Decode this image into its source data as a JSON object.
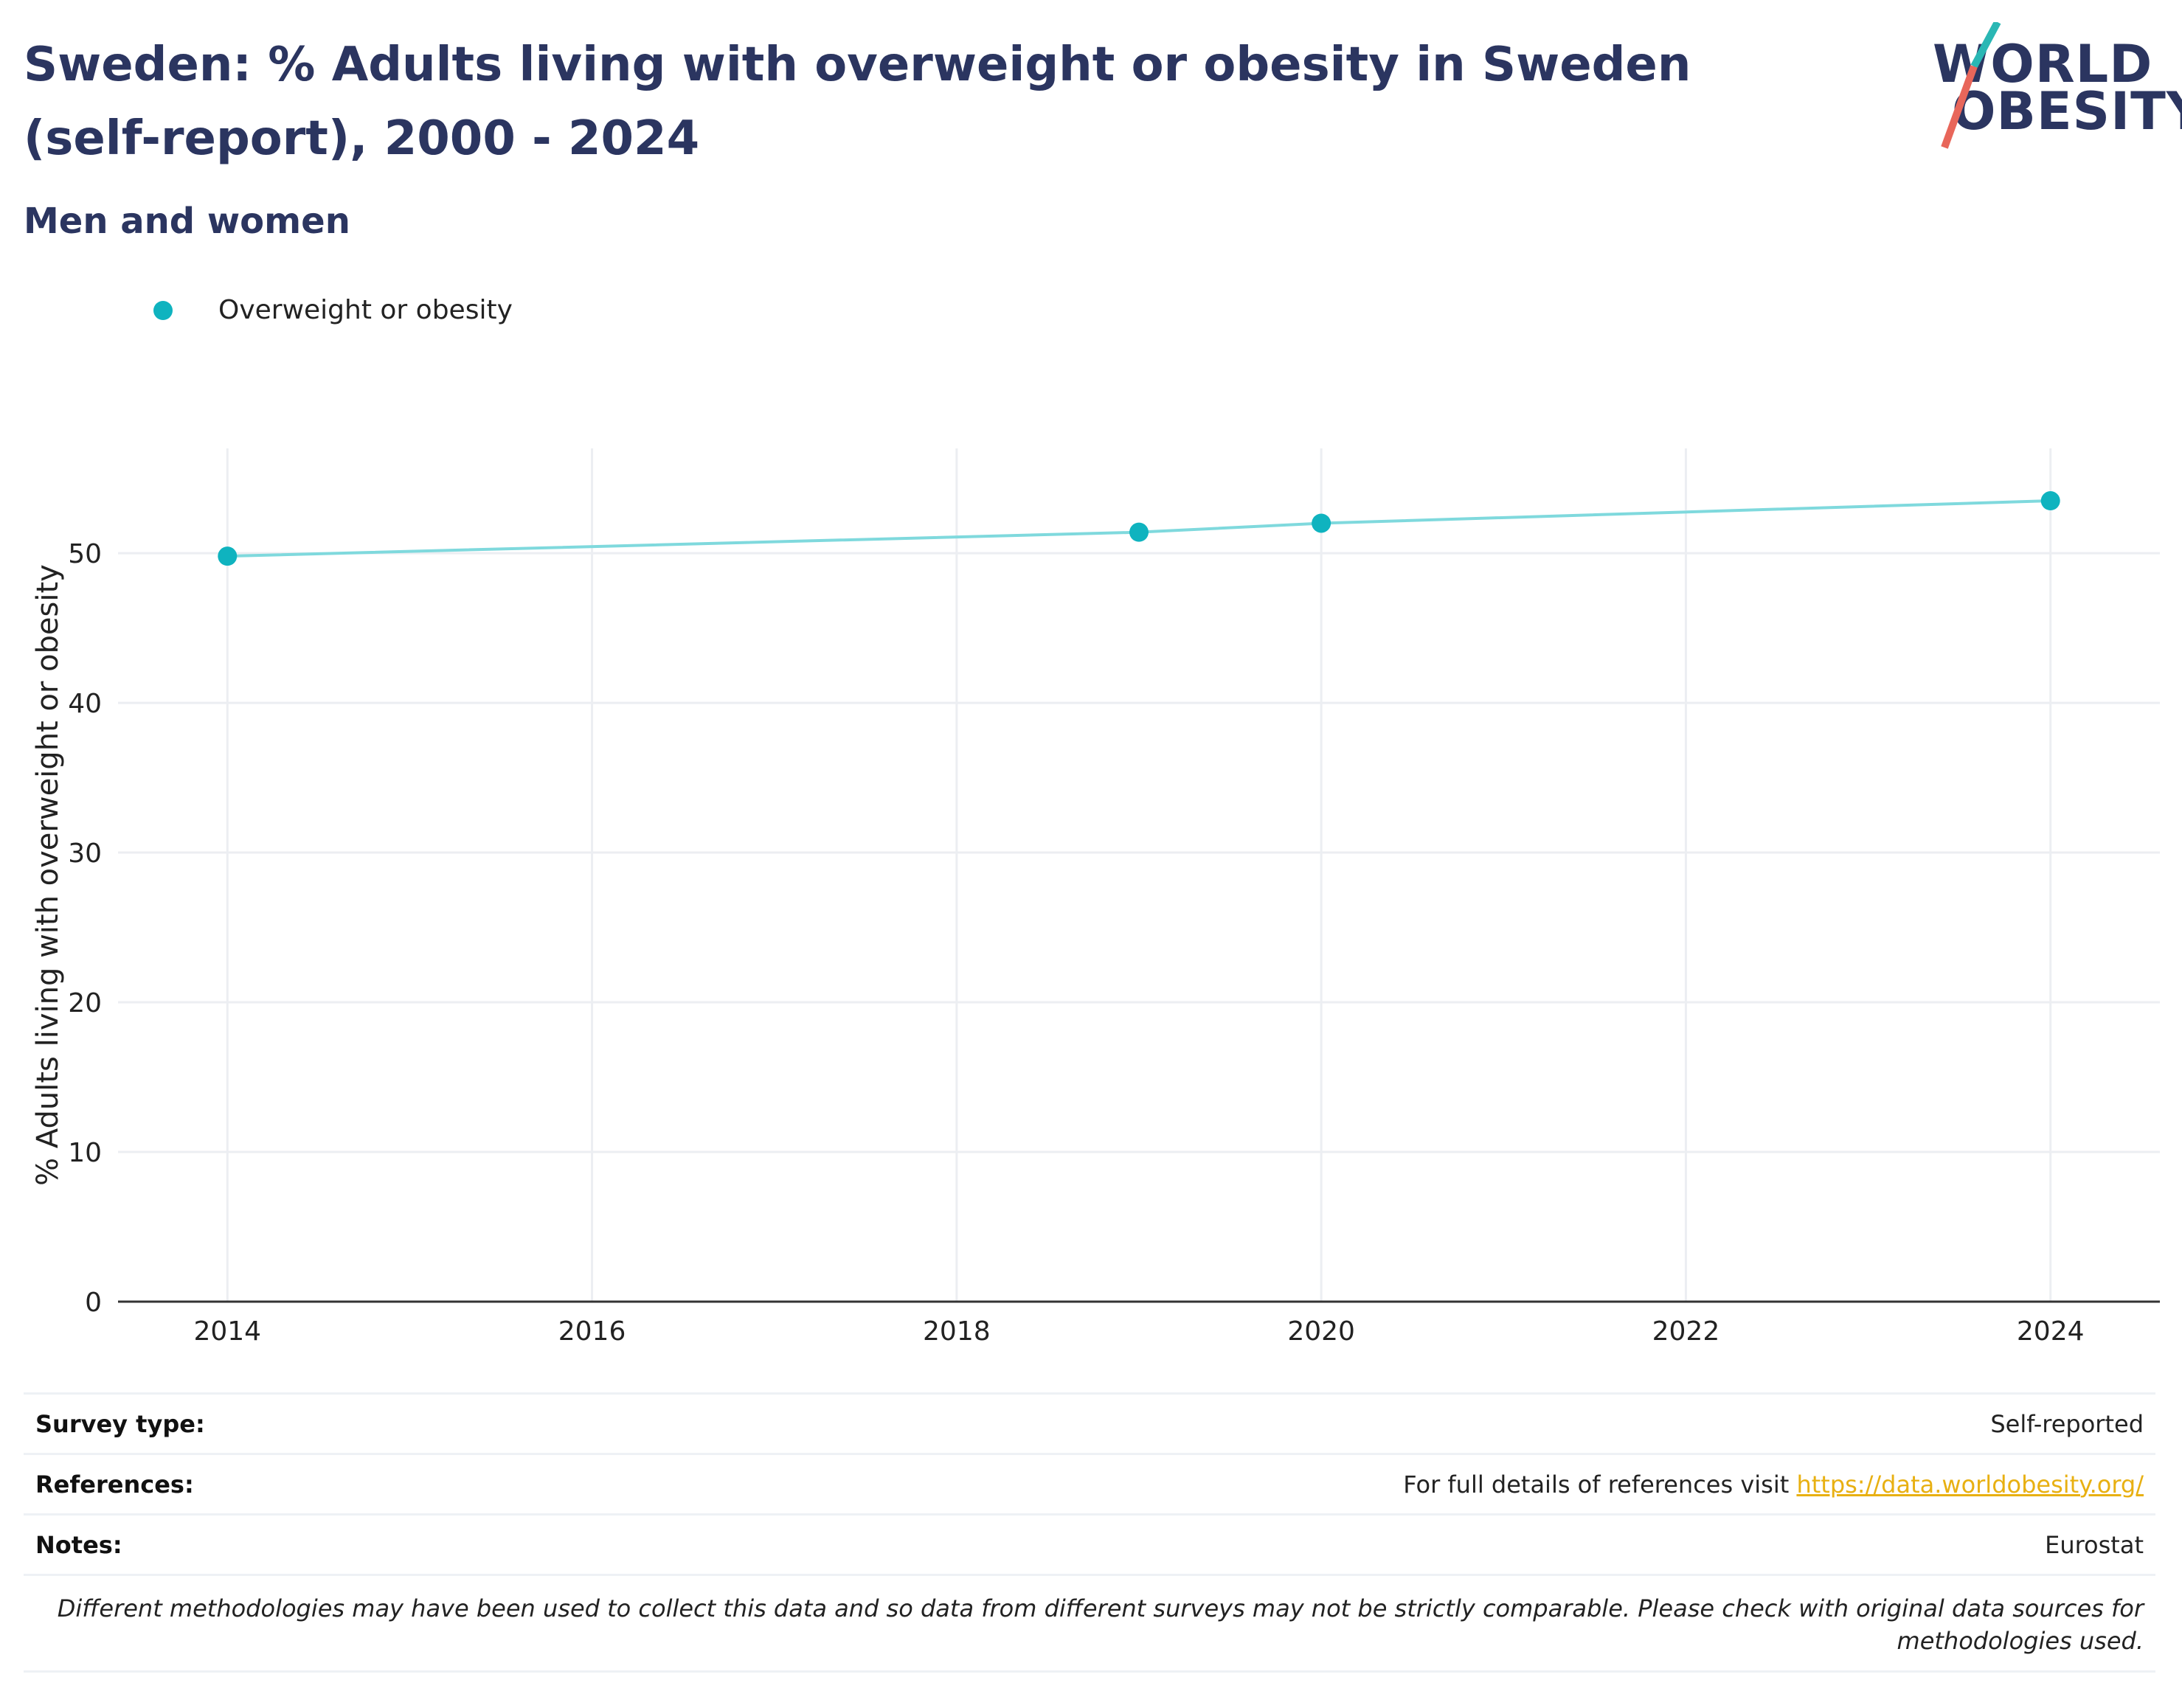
{
  "header": {
    "title": "Sweden: % Adults living with overweight or obesity in Sweden (self-report), 2000 - 2024",
    "subtitle": "Men and women"
  },
  "logo": {
    "line1": "WORLD",
    "line2": "OBESITY",
    "colors": {
      "slash_top": "#2ab7b4",
      "slash_bottom": "#e8665a",
      "text": "#2b3560"
    }
  },
  "colors": {
    "series": "#0fb3bf",
    "line": "#7fd9dd",
    "title": "#2b3560",
    "link": "#e8b012",
    "grid": "#eceef2"
  },
  "chart_data": {
    "type": "line",
    "title": "Sweden: % Adults living with overweight or obesity in Sweden (self-report), 2000 - 2024",
    "subtitle": "Men and women",
    "xlabel": "",
    "ylabel": "% Adults living with overweight or obesity",
    "xlim": [
      2013.4,
      2024.6
    ],
    "ylim": [
      0,
      57
    ],
    "xticks": [
      2014,
      2016,
      2018,
      2020,
      2022,
      2024
    ],
    "yticks": [
      0,
      10,
      20,
      30,
      40,
      50
    ],
    "grid": true,
    "legend": "top-left",
    "series": [
      {
        "name": "Overweight or obesity",
        "x": [
          2014,
          2019,
          2020,
          2024
        ],
        "y": [
          49.8,
          51.4,
          52.0,
          53.5
        ]
      }
    ]
  },
  "info": {
    "survey_label": "Survey type:",
    "survey_value": "Self-reported",
    "references_label": "References:",
    "references_text": "For full details of references visit",
    "references_link": "https://data.worldobesity.org/",
    "notes_label": "Notes:",
    "notes_value": "Eurostat",
    "disclaimer": "Different methodologies may have been used to collect this data and so data from different surveys may not be strictly comparable. Please check with original data sources for methodologies used."
  }
}
